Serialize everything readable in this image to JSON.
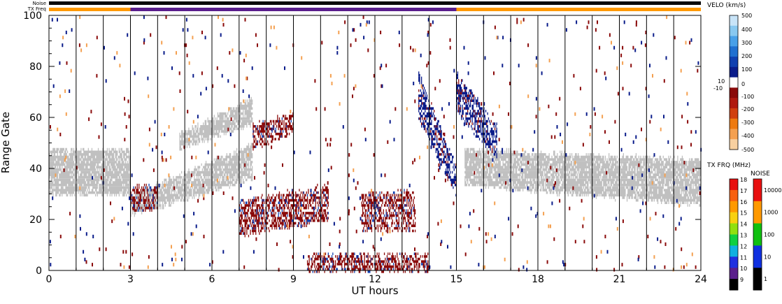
{
  "chart_data": {
    "type": "heatmap",
    "title": "",
    "xlabel": "UT hours",
    "ylabel": "Range Gate",
    "xlim": [
      0,
      24
    ],
    "ylim": [
      0,
      100
    ],
    "xticks": [
      "0",
      "3",
      "6",
      "9",
      "12",
      "15",
      "18",
      "21",
      "24"
    ],
    "xtick_values": [
      0,
      3,
      6,
      9,
      12,
      15,
      18,
      21,
      24
    ],
    "yticks": [
      "0",
      "20",
      "40",
      "60",
      "80",
      "100"
    ],
    "ytick_values": [
      0,
      20,
      40,
      60,
      80,
      100
    ],
    "grid_x_hours": [
      1,
      2,
      3,
      4,
      5,
      6,
      7,
      8,
      9,
      10,
      11,
      12,
      13,
      14,
      15,
      16,
      17,
      18,
      19,
      20,
      21,
      22,
      23
    ],
    "status_bars": {
      "noise_label": "Noise",
      "txfreq_label": "TX Freq",
      "txfreq_segments": [
        {
          "start": 0,
          "end": 3,
          "color": "#ff9900"
        },
        {
          "start": 3,
          "end": 15,
          "color": "#5a1e8c"
        },
        {
          "start": 15,
          "end": 24,
          "color": "#ff9900"
        }
      ]
    },
    "ground_scatter_color": "#c0c0c0",
    "features": [
      {
        "kind": "ground",
        "start": 0,
        "end": 3,
        "gate_lo": [
          30,
          30
        ],
        "gate_hi": [
          46,
          46
        ]
      },
      {
        "kind": "ground",
        "start": 3,
        "end": 7.5,
        "gate_lo": [
          22,
          36
        ],
        "gate_hi": [
          28,
          48
        ]
      },
      {
        "kind": "ground",
        "start": 4.8,
        "end": 7.5,
        "gate_lo": [
          48,
          58
        ],
        "gate_hi": [
          52,
          66
        ]
      },
      {
        "kind": "ground",
        "start": 15.3,
        "end": 24,
        "gate_lo": [
          34,
          26
        ],
        "gate_hi": [
          46,
          42
        ]
      },
      {
        "kind": "vneg",
        "start": 3,
        "end": 4,
        "gate_lo": [
          24,
          24
        ],
        "gate_hi": [
          32,
          32
        ]
      },
      {
        "kind": "vneg",
        "start": 7,
        "end": 10.3,
        "gate_lo": [
          14,
          20
        ],
        "gate_hi": [
          26,
          32
        ]
      },
      {
        "kind": "vneg",
        "start": 11.5,
        "end": 13.5,
        "gate_lo": [
          16,
          16
        ],
        "gate_hi": [
          28,
          30
        ]
      },
      {
        "kind": "vneg",
        "start": 9.5,
        "end": 14,
        "gate_lo": [
          0,
          0
        ],
        "gate_hi": [
          5,
          5
        ]
      },
      {
        "kind": "vneg",
        "start": 7.5,
        "end": 9,
        "gate_lo": [
          48,
          54
        ],
        "gate_hi": [
          56,
          60
        ]
      },
      {
        "kind": "vpos",
        "start": 13.6,
        "end": 15,
        "gate_lo": [
          60,
          30
        ],
        "gate_hi": [
          76,
          40
        ]
      },
      {
        "kind": "vpos",
        "start": 15,
        "end": 16.5,
        "gate_lo": [
          62,
          44
        ],
        "gate_hi": [
          76,
          56
        ]
      }
    ],
    "velocity_scale": {
      "title": "VELO (km/s)",
      "ticks": [
        "500",
        "400",
        "300",
        "200",
        "100",
        "10",
        "-10",
        "0",
        "-100",
        "-200",
        "-300",
        "-400",
        "-500"
      ],
      "colors": [
        "#c8e4f8",
        "#88c8f0",
        "#48a0e8",
        "#2070d0",
        "#1040b0",
        "#0a1c8a",
        "#ffffff",
        "#8a0a0a",
        "#b01a10",
        "#d04010",
        "#ee7a10",
        "#f4a050",
        "#f8d0a0"
      ]
    },
    "txfrq_scale": {
      "title": "TX FRQ (MHz)",
      "ticks": [
        "18",
        "17",
        "16",
        "15",
        "14",
        "13",
        "12",
        "11",
        "10",
        "9"
      ],
      "colors": [
        "#e81010",
        "#f86010",
        "#ff9900",
        "#f8d010",
        "#90e010",
        "#10d040",
        "#10b0e0",
        "#2030e0",
        "#5a1e8c",
        "#000000"
      ]
    },
    "noise_scale": {
      "title": "NOISE",
      "ticks": [
        "10000",
        "1000",
        "100",
        "10",
        "1"
      ],
      "colors": [
        "#e81010",
        "#ff9900",
        "#10c010",
        "#1030e0",
        "#000000"
      ]
    }
  }
}
